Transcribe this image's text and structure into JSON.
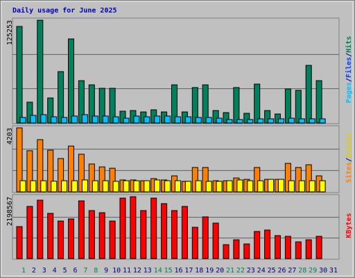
{
  "chart_data": [
    {
      "type": "bar",
      "title": "Daily usage for June 2025",
      "ylim": [
        0,
        125253
      ],
      "yticks": [
        125253
      ],
      "legend": [
        {
          "name": "Pages",
          "color": "#00c0ff"
        },
        {
          "name": "Files",
          "color": "#0040ff"
        },
        {
          "name": "Hits",
          "color": "#00805c"
        }
      ],
      "series": [
        {
          "color": "#00805c",
          "values": [
            117600,
            25400,
            125200,
            30500,
            62600,
            102400,
            51600,
            46500,
            42300,
            42300,
            14400,
            15200,
            13500,
            16100,
            13500,
            46500,
            13500,
            43200,
            46500,
            15200,
            12700,
            43200,
            11800,
            47400,
            15200,
            11000,
            41500,
            39800,
            70200,
            51600,
            null
          ]
        },
        {
          "color": "#00c0ff",
          "values": [
            6800,
            9300,
            10200,
            7600,
            6800,
            8500,
            10200,
            8500,
            8500,
            7600,
            5900,
            8500,
            7600,
            8500,
            8500,
            7600,
            7600,
            6800,
            6800,
            5900,
            4200,
            4200,
            4200,
            5100,
            5100,
            5100,
            5900,
            5100,
            5100,
            5100,
            null
          ]
        }
      ]
    },
    {
      "type": "bar",
      "ylim": [
        0,
        4203
      ],
      "yticks": [
        4203
      ],
      "legend": [
        {
          "name": "Sites",
          "color": "#ff8000"
        },
        {
          "name": "Visits",
          "color": "#e0d000"
        }
      ],
      "series": [
        {
          "color": "#ff8000",
          "values": [
            4203,
            2700,
            3430,
            2740,
            2190,
            3010,
            2470,
            1830,
            1640,
            1550,
            780,
            780,
            730,
            870,
            780,
            1050,
            690,
            1600,
            1600,
            730,
            730,
            910,
            820,
            1600,
            820,
            820,
            1870,
            1600,
            1780,
            1050,
            null
          ]
        },
        {
          "color": "#ffff00",
          "values": [
            730,
            730,
            730,
            700,
            730,
            730,
            780,
            730,
            730,
            690,
            730,
            730,
            730,
            780,
            730,
            730,
            690,
            730,
            690,
            690,
            730,
            780,
            730,
            730,
            820,
            820,
            730,
            730,
            730,
            730,
            null
          ]
        }
      ]
    },
    {
      "type": "bar",
      "ylim": [
        0,
        2198567
      ],
      "yticks": [
        2198567
      ],
      "legend": [
        {
          "name": "KBytes",
          "color": "#ff0000"
        }
      ],
      "categories": [
        "1",
        "2",
        "3",
        "4",
        "5",
        "6",
        "7",
        "8",
        "9",
        "10",
        "11",
        "12",
        "13",
        "14",
        "15",
        "16",
        "17",
        "18",
        "19",
        "20",
        "21",
        "22",
        "23",
        "24",
        "25",
        "26",
        "27",
        "28",
        "29",
        "30",
        "31"
      ],
      "weekend": [
        0,
        6,
        7,
        13,
        14,
        20,
        21,
        27,
        28
      ],
      "weekend_color": "#00805c",
      "weekday_color": "#000080",
      "series": [
        {
          "color": "#ff0000",
          "values": [
            1136000,
            1853000,
            2075000,
            1606000,
            1334000,
            1408000,
            2050000,
            1705000,
            1630000,
            1334000,
            2149000,
            2198567,
            1705000,
            2149000,
            1952000,
            1705000,
            1853000,
            1112000,
            1482000,
            1260000,
            494000,
            667000,
            519000,
            963000,
            1013000,
            815000,
            790000,
            593000,
            667000,
            790000,
            null
          ]
        }
      ]
    }
  ]
}
